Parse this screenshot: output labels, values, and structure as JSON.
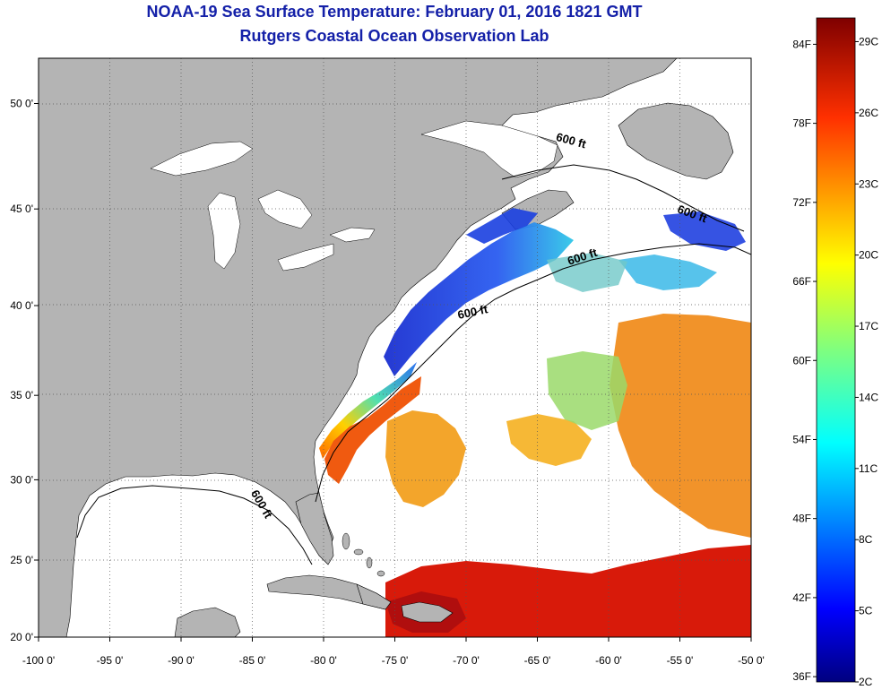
{
  "header": {
    "title": "NOAA-19 Sea Surface Temperature:  February 01, 2016 1821 GMT",
    "subtitle": "Rutgers Coastal Ocean Observation Lab"
  },
  "map": {
    "lon_range": [
      -100,
      -50
    ],
    "lat_range": [
      20,
      52
    ],
    "lon_ticks": [
      {
        "value": -100,
        "label": "-100 0'"
      },
      {
        "value": -95,
        "label": "-95 0'"
      },
      {
        "value": -90,
        "label": "-90 0'"
      },
      {
        "value": -85,
        "label": "-85 0'"
      },
      {
        "value": -80,
        "label": "-80 0'"
      },
      {
        "value": -75,
        "label": "-75 0'"
      },
      {
        "value": -70,
        "label": "-70 0'"
      },
      {
        "value": -65,
        "label": "-65 0'"
      },
      {
        "value": -60,
        "label": "-60 0'"
      },
      {
        "value": -55,
        "label": "-55 0'"
      },
      {
        "value": -50,
        "label": "-50 0'"
      }
    ],
    "lat_ticks": [
      {
        "value": 20,
        "label": "20 0'"
      },
      {
        "value": 25,
        "label": "25 0'"
      },
      {
        "value": 30,
        "label": "30 0'"
      },
      {
        "value": 35,
        "label": "35 0'"
      },
      {
        "value": 40,
        "label": "40 0'"
      },
      {
        "value": 45,
        "label": "45 0'"
      },
      {
        "value": 50,
        "label": "50 0'"
      }
    ],
    "contour_label": "600 ft",
    "colors": {
      "land": "#b4b4b4",
      "ocean_no_data": "#ffffff",
      "grid": "#555555"
    }
  },
  "colorbar": {
    "min_c": 2,
    "max_c": 30,
    "fahrenheit_labels": [
      "84F",
      "78F",
      "72F",
      "66F",
      "60F",
      "54F",
      "48F",
      "42F",
      "36F"
    ],
    "celsius_labels": [
      "29C",
      "26C",
      "23C",
      "20C",
      "17C",
      "14C",
      "11C",
      "8C",
      "5C",
      "2C"
    ],
    "colors": [
      "#00007f",
      "#0000ff",
      "#007fff",
      "#00ffff",
      "#7fff7f",
      "#ffff00",
      "#ff7f00",
      "#ff0000",
      "#7f0000"
    ]
  }
}
